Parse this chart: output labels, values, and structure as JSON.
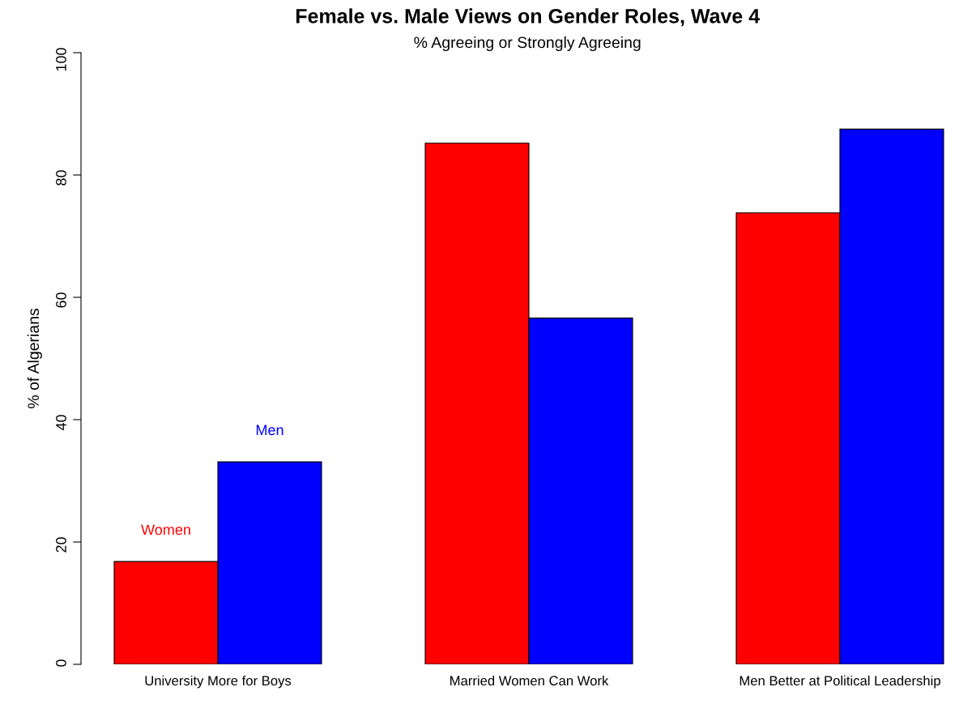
{
  "chart_data": {
    "type": "bar",
    "title": "Female vs. Male Views on Gender Roles, Wave 4",
    "subtitle": "% Agreeing or Strongly Agreeing",
    "ylabel": "% of Algerians",
    "categories": [
      "University More for Boys",
      "Married Women Can Work",
      "Men Better at Political Leadership"
    ],
    "series": [
      {
        "name": "Women",
        "color": "#ff0000",
        "values": [
          16.8,
          85.2,
          73.8
        ]
      },
      {
        "name": "Men",
        "color": "#0000ff",
        "values": [
          33.1,
          56.6,
          87.5
        ]
      }
    ],
    "ylim": [
      0,
      100
    ],
    "yticks": [
      0,
      20,
      40,
      60,
      80,
      100
    ],
    "grid": false,
    "legend": false
  }
}
